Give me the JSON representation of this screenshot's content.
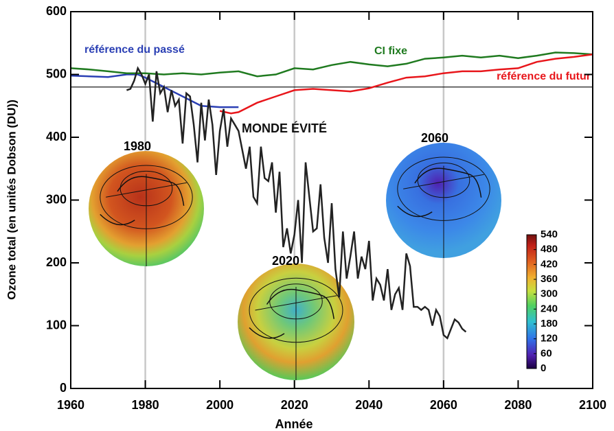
{
  "chart_data": {
    "type": "line",
    "xlabel": "Année",
    "ylabel": "Ozone total (en unités Dobson (DU))",
    "xlim": [
      1960,
      2100
    ],
    "ylim": [
      0,
      600
    ],
    "xticks": [
      1960,
      1980,
      2000,
      2020,
      2040,
      2060,
      2080,
      2100
    ],
    "yticks": [
      0,
      100,
      200,
      300,
      400,
      500,
      600
    ],
    "xgrid": [
      1980,
      2020,
      2060
    ],
    "reference_line": 480,
    "series": [
      {
        "name": "référence du passé",
        "color": "#2a3fb4",
        "x": [
          1960,
          1965,
          1970,
          1975,
          1978,
          1980,
          1985,
          1990,
          1995,
          2000,
          2005
        ],
        "values": [
          498,
          497,
          496,
          500,
          500,
          495,
          480,
          465,
          450,
          448,
          448
        ]
      },
      {
        "name": "CI fixe",
        "color": "#1f7a1f",
        "x": [
          1960,
          1965,
          1970,
          1975,
          1980,
          1985,
          1990,
          1995,
          2000,
          2005,
          2010,
          2015,
          2020,
          2025,
          2030,
          2035,
          2040,
          2045,
          2050,
          2055,
          2060,
          2065,
          2070,
          2075,
          2080,
          2085,
          2090,
          2095,
          2100
        ],
        "values": [
          510,
          508,
          505,
          502,
          502,
          500,
          502,
          500,
          503,
          505,
          497,
          500,
          510,
          508,
          515,
          520,
          516,
          513,
          517,
          525,
          527,
          530,
          527,
          530,
          526,
          530,
          535,
          534,
          532
        ]
      },
      {
        "name": "référence du futur",
        "color": "#e8161b",
        "x": [
          2000,
          2003,
          2005,
          2010,
          2015,
          2020,
          2025,
          2030,
          2035,
          2040,
          2045,
          2050,
          2055,
          2060,
          2065,
          2070,
          2075,
          2080,
          2085,
          2090,
          2095,
          2100
        ],
        "values": [
          442,
          438,
          440,
          455,
          465,
          475,
          477,
          475,
          473,
          478,
          487,
          495,
          497,
          502,
          505,
          505,
          508,
          510,
          520,
          525,
          528,
          532
        ]
      },
      {
        "name": "MONDE ÉVITÉ",
        "color": "#222222",
        "x": [
          1975,
          1976,
          1977,
          1978,
          1979,
          1980,
          1981,
          1982,
          1983,
          1984,
          1985,
          1986,
          1987,
          1988,
          1989,
          1990,
          1991,
          1992,
          1993,
          1994,
          1995,
          1996,
          1997,
          1998,
          1999,
          2000,
          2001,
          2002,
          2003,
          2004,
          2005,
          2006,
          2007,
          2008,
          2009,
          2010,
          2011,
          2012,
          2013,
          2014,
          2015,
          2016,
          2017,
          2018,
          2019,
          2020,
          2021,
          2022,
          2023,
          2024,
          2025,
          2026,
          2027,
          2028,
          2029,
          2030,
          2031,
          2032,
          2033,
          2034,
          2035,
          2036,
          2037,
          2038,
          2039,
          2040,
          2041,
          2042,
          2043,
          2044,
          2045,
          2046,
          2047,
          2048,
          2049,
          2050,
          2051,
          2052,
          2053,
          2054,
          2055,
          2056,
          2057,
          2058,
          2059,
          2060,
          2061,
          2062,
          2063,
          2064,
          2065,
          2066
        ],
        "values": [
          475,
          477,
          490,
          510,
          500,
          485,
          500,
          425,
          505,
          470,
          480,
          440,
          475,
          450,
          460,
          390,
          470,
          465,
          420,
          360,
          455,
          395,
          460,
          420,
          340,
          410,
          445,
          385,
          430,
          420,
          410,
          380,
          350,
          385,
          305,
          295,
          385,
          335,
          330,
          360,
          280,
          345,
          225,
          255,
          215,
          245,
          300,
          200,
          360,
          305,
          250,
          255,
          325,
          240,
          200,
          295,
          190,
          145,
          250,
          175,
          210,
          250,
          175,
          210,
          190,
          235,
          140,
          175,
          165,
          140,
          190,
          125,
          150,
          160,
          125,
          215,
          195,
          130,
          130,
          125,
          130,
          125,
          100,
          125,
          115,
          85,
          80,
          95,
          110,
          105,
          95,
          90
        ]
      }
    ],
    "insets": [
      {
        "label": "1980"
      },
      {
        "label": "2020"
      },
      {
        "label": "2060"
      }
    ],
    "colorbar": {
      "lim": [
        0,
        540
      ],
      "ticks": [
        0,
        60,
        120,
        180,
        240,
        300,
        360,
        420,
        480,
        540
      ]
    }
  }
}
